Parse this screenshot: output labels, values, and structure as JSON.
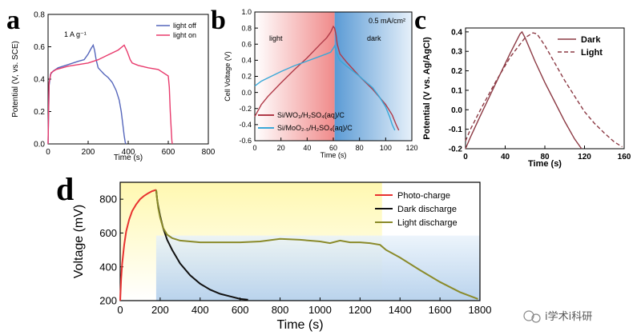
{
  "watermark": {
    "text": "i学术i科研"
  },
  "chart_data": [
    {
      "panel": "a",
      "type": "line",
      "annotation": "1 A g⁻¹",
      "xlabel": "Time (s)",
      "ylabel": "Potential (V, vs. SCE)",
      "xlim": [
        0,
        800
      ],
      "ylim": [
        0.0,
        0.8
      ],
      "xticks": [
        0,
        200,
        400,
        600,
        800
      ],
      "yticks": [
        0.0,
        0.2,
        0.4,
        0.6,
        0.8
      ],
      "legend_position": "top-right",
      "series": [
        {
          "name": "light off",
          "color": "#5566bb",
          "x": [
            0,
            5,
            12,
            25,
            50,
            100,
            150,
            180,
            200,
            215,
            225,
            232,
            240,
            250,
            280,
            300,
            320,
            340,
            355,
            365,
            375,
            380,
            385,
            388
          ],
          "y": [
            0.0,
            0.36,
            0.43,
            0.45,
            0.47,
            0.49,
            0.51,
            0.52,
            0.555,
            0.59,
            0.61,
            0.58,
            0.52,
            0.47,
            0.43,
            0.41,
            0.38,
            0.33,
            0.27,
            0.2,
            0.1,
            0.05,
            0.01,
            0.0
          ]
        },
        {
          "name": "light on",
          "color": "#e83a6c",
          "x": [
            0,
            5,
            15,
            40,
            100,
            150,
            200,
            250,
            300,
            350,
            380,
            395,
            410,
            420,
            450,
            500,
            550,
            600,
            605,
            610,
            615,
            618,
            620
          ],
          "y": [
            0.0,
            0.38,
            0.44,
            0.46,
            0.48,
            0.49,
            0.5,
            0.52,
            0.55,
            0.58,
            0.61,
            0.57,
            0.52,
            0.5,
            0.485,
            0.47,
            0.46,
            0.42,
            0.35,
            0.2,
            0.08,
            0.02,
            0.0
          ]
        }
      ]
    },
    {
      "panel": "b",
      "type": "line",
      "annotation": "0.5 mA/cm²",
      "region_labels": [
        "light",
        "dark"
      ],
      "xlabel": "Time (s)",
      "ylabel": "Cell Voltage (V)",
      "xlim": [
        0,
        120
      ],
      "ylim": [
        -0.6,
        1.0
      ],
      "xticks": [
        0,
        20,
        40,
        60,
        80,
        100,
        120
      ],
      "yticks": [
        -0.6,
        -0.4,
        -0.2,
        0.0,
        0.2,
        0.4,
        0.6,
        0.8,
        1.0
      ],
      "light_region": [
        0,
        61
      ],
      "dark_region": [
        61,
        120
      ],
      "legend_position": "bottom-left",
      "series": [
        {
          "name": "Si/WO₃/H₂SO₄(aq)/C",
          "color": "#b03a48",
          "x": [
            0,
            5,
            10,
            20,
            30,
            40,
            50,
            55,
            58,
            60,
            61,
            62,
            63,
            65,
            70,
            80,
            90,
            100,
            105,
            108,
            110
          ],
          "y": [
            -0.3,
            -0.15,
            -0.05,
            0.12,
            0.28,
            0.43,
            0.6,
            0.68,
            0.75,
            0.82,
            0.8,
            0.72,
            0.6,
            0.48,
            0.38,
            0.2,
            0.04,
            -0.15,
            -0.28,
            -0.4,
            -0.47
          ]
        },
        {
          "name": "Si/MoO₂.₅/H₂SO₄(aq)/C",
          "color": "#3aa8d8",
          "x": [
            0,
            5,
            10,
            20,
            30,
            40,
            50,
            55,
            58,
            60,
            61,
            62,
            63,
            65,
            70,
            80,
            90,
            95,
            100,
            103,
            105,
            107
          ],
          "y": [
            0.08,
            0.14,
            0.18,
            0.26,
            0.33,
            0.39,
            0.45,
            0.48,
            0.5,
            0.55,
            0.58,
            0.52,
            0.47,
            0.4,
            0.33,
            0.2,
            0.06,
            -0.05,
            -0.18,
            -0.3,
            -0.4,
            -0.47
          ]
        }
      ]
    },
    {
      "panel": "c",
      "type": "line",
      "xlabel": "Time (s)",
      "ylabel": "Potential (V vs. Ag/AgCl)",
      "xlim": [
        0,
        160
      ],
      "ylim": [
        -0.2,
        0.42
      ],
      "xticks": [
        0,
        40,
        80,
        120,
        160
      ],
      "yticks": [
        -0.2,
        -0.1,
        0.0,
        0.1,
        0.2,
        0.3,
        0.4
      ],
      "legend_position": "top-right",
      "series": [
        {
          "name": "Dark",
          "color": "#8c3a44",
          "dash": "solid",
          "x": [
            0,
            5,
            15,
            30,
            45,
            55,
            57,
            60,
            70,
            80,
            90,
            100,
            110,
            117
          ],
          "y": [
            -0.2,
            -0.14,
            -0.03,
            0.13,
            0.29,
            0.39,
            0.4,
            0.37,
            0.25,
            0.14,
            0.04,
            -0.06,
            -0.15,
            -0.2
          ]
        },
        {
          "name": "Light",
          "color": "#8c3a44",
          "dash": "dashed",
          "x": [
            0,
            5,
            15,
            30,
            45,
            60,
            68,
            72,
            80,
            90,
            100,
            110,
            120,
            130,
            140,
            150,
            158
          ],
          "y": [
            -0.16,
            -0.1,
            0.0,
            0.14,
            0.27,
            0.37,
            0.395,
            0.39,
            0.33,
            0.24,
            0.15,
            0.07,
            -0.01,
            -0.07,
            -0.12,
            -0.165,
            -0.19
          ]
        }
      ]
    },
    {
      "panel": "d",
      "type": "line",
      "xlabel": "Time (s)",
      "ylabel": "Voltage (mV)",
      "xlim": [
        0,
        1800
      ],
      "ylim": [
        200,
        900
      ],
      "xticks": [
        0,
        200,
        400,
        600,
        800,
        1000,
        1200,
        1400,
        1600,
        1800
      ],
      "yticks": [
        200,
        400,
        600,
        800
      ],
      "light_region": [
        0,
        1310
      ],
      "dark_region": [
        180,
        1800
      ],
      "legend_position": "top-right",
      "series": [
        {
          "name": "Photo-charge",
          "color": "#e8312f",
          "x": [
            0,
            5,
            10,
            20,
            30,
            45,
            60,
            80,
            100,
            120,
            140,
            160,
            180
          ],
          "y": [
            200,
            330,
            420,
            530,
            610,
            680,
            730,
            770,
            800,
            820,
            835,
            848,
            855
          ]
        },
        {
          "name": "Dark discharge",
          "color": "#111111",
          "x": [
            180,
            185,
            190,
            200,
            215,
            235,
            260,
            300,
            350,
            400,
            450,
            500,
            550,
            600,
            640
          ],
          "y": [
            855,
            800,
            760,
            700,
            630,
            560,
            500,
            420,
            350,
            300,
            265,
            240,
            225,
            210,
            205
          ]
        },
        {
          "name": "Light discharge",
          "color": "#8a8a2a",
          "x": [
            180,
            185,
            190,
            200,
            215,
            235,
            260,
            300,
            400,
            500,
            600,
            700,
            800,
            900,
            1000,
            1050,
            1100,
            1150,
            1200,
            1250,
            1300,
            1310,
            1330,
            1400,
            1500,
            1600,
            1700,
            1790
          ],
          "y": [
            855,
            800,
            750,
            690,
            630,
            590,
            570,
            555,
            545,
            545,
            545,
            550,
            565,
            560,
            550,
            540,
            555,
            545,
            545,
            540,
            530,
            520,
            500,
            455,
            380,
            310,
            250,
            210
          ]
        }
      ]
    }
  ]
}
